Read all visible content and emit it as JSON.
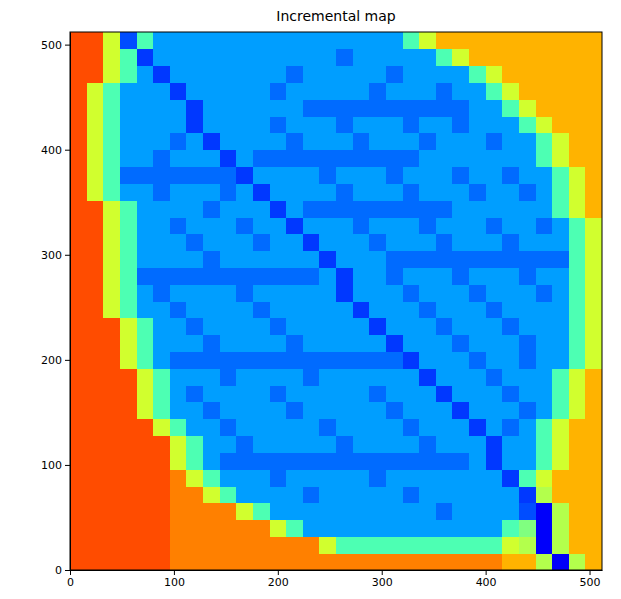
{
  "chart_data": {
    "type": "heatmap",
    "title": "Incremental map",
    "xlim": [
      0,
      512
    ],
    "ylim": [
      0,
      512
    ],
    "xticks": [
      0,
      100,
      200,
      300,
      400,
      500
    ],
    "yticks": [
      0,
      100,
      200,
      300,
      400,
      500
    ],
    "zlim": [
      0,
      1
    ],
    "x": [
      0,
      16,
      32,
      48,
      64,
      80,
      96,
      112,
      128,
      144,
      160,
      176,
      192,
      208,
      224,
      240,
      256,
      272,
      288,
      304,
      320,
      336,
      352,
      368,
      384,
      400,
      416,
      432,
      448,
      464,
      480,
      496,
      512
    ],
    "y": [
      0,
      16,
      32,
      48,
      64,
      80,
      96,
      112,
      128,
      144,
      160,
      176,
      192,
      208,
      224,
      240,
      256,
      272,
      288,
      304,
      320,
      336,
      352,
      368,
      384,
      400,
      416,
      432,
      448,
      464,
      480,
      496,
      512
    ],
    "z": [
      [
        0.8,
        0.8,
        0.8,
        0.8,
        0.8,
        0.8,
        0.75,
        0.75,
        0.75,
        0.75,
        0.75,
        0.75,
        0.75,
        0.75,
        0.75,
        0.75,
        0.75,
        0.75,
        0.75,
        0.75,
        0.75,
        0.75,
        0.75,
        0.75,
        0.75,
        0.75,
        0.7,
        0.7,
        0.55,
        0.12,
        0.55,
        0.7
      ],
      [
        0.8,
        0.8,
        0.8,
        0.8,
        0.8,
        0.8,
        0.75,
        0.75,
        0.75,
        0.75,
        0.75,
        0.75,
        0.75,
        0.75,
        0.75,
        0.58,
        0.45,
        0.45,
        0.45,
        0.45,
        0.45,
        0.45,
        0.45,
        0.45,
        0.45,
        0.45,
        0.58,
        0.55,
        0.12,
        0.55,
        0.7,
        0.7
      ],
      [
        0.8,
        0.8,
        0.8,
        0.8,
        0.8,
        0.8,
        0.75,
        0.75,
        0.75,
        0.75,
        0.75,
        0.75,
        0.58,
        0.45,
        0.28,
        0.28,
        0.28,
        0.28,
        0.28,
        0.28,
        0.28,
        0.28,
        0.28,
        0.28,
        0.28,
        0.28,
        0.45,
        0.5,
        0.12,
        0.55,
        0.7,
        0.7
      ],
      [
        0.8,
        0.8,
        0.8,
        0.8,
        0.8,
        0.8,
        0.75,
        0.75,
        0.75,
        0.75,
        0.58,
        0.45,
        0.28,
        0.28,
        0.28,
        0.28,
        0.28,
        0.28,
        0.28,
        0.28,
        0.28,
        0.28,
        0.23,
        0.28,
        0.28,
        0.28,
        0.28,
        0.2,
        0.12,
        0.55,
        0.7,
        0.7
      ],
      [
        0.8,
        0.8,
        0.8,
        0.8,
        0.8,
        0.8,
        0.75,
        0.75,
        0.58,
        0.45,
        0.28,
        0.28,
        0.28,
        0.28,
        0.23,
        0.28,
        0.28,
        0.28,
        0.28,
        0.28,
        0.23,
        0.28,
        0.28,
        0.28,
        0.28,
        0.28,
        0.28,
        0.18,
        0.55,
        0.7,
        0.7,
        0.7
      ],
      [
        0.8,
        0.8,
        0.8,
        0.8,
        0.8,
        0.8,
        0.75,
        0.58,
        0.45,
        0.28,
        0.28,
        0.28,
        0.23,
        0.28,
        0.28,
        0.28,
        0.28,
        0.28,
        0.23,
        0.28,
        0.28,
        0.28,
        0.28,
        0.28,
        0.28,
        0.28,
        0.18,
        0.45,
        0.58,
        0.7,
        0.7,
        0.7
      ],
      [
        0.8,
        0.8,
        0.8,
        0.8,
        0.8,
        0.8,
        0.58,
        0.45,
        0.28,
        0.23,
        0.23,
        0.23,
        0.23,
        0.23,
        0.23,
        0.23,
        0.23,
        0.23,
        0.23,
        0.23,
        0.23,
        0.23,
        0.23,
        0.23,
        0.28,
        0.18,
        0.28,
        0.28,
        0.45,
        0.58,
        0.7,
        0.7
      ],
      [
        0.8,
        0.8,
        0.8,
        0.8,
        0.8,
        0.8,
        0.58,
        0.45,
        0.28,
        0.28,
        0.23,
        0.28,
        0.28,
        0.28,
        0.28,
        0.28,
        0.23,
        0.28,
        0.28,
        0.28,
        0.28,
        0.23,
        0.28,
        0.28,
        0.28,
        0.18,
        0.28,
        0.28,
        0.45,
        0.58,
        0.7,
        0.7
      ],
      [
        0.8,
        0.8,
        0.8,
        0.8,
        0.8,
        0.58,
        0.45,
        0.28,
        0.28,
        0.23,
        0.28,
        0.28,
        0.28,
        0.28,
        0.28,
        0.23,
        0.28,
        0.28,
        0.28,
        0.28,
        0.23,
        0.28,
        0.28,
        0.28,
        0.18,
        0.28,
        0.23,
        0.28,
        0.45,
        0.58,
        0.7,
        0.7
      ],
      [
        0.8,
        0.8,
        0.8,
        0.8,
        0.58,
        0.45,
        0.28,
        0.28,
        0.23,
        0.28,
        0.28,
        0.28,
        0.28,
        0.23,
        0.28,
        0.28,
        0.28,
        0.28,
        0.28,
        0.23,
        0.28,
        0.28,
        0.28,
        0.18,
        0.28,
        0.28,
        0.28,
        0.23,
        0.28,
        0.45,
        0.58,
        0.7
      ],
      [
        0.8,
        0.8,
        0.8,
        0.8,
        0.58,
        0.45,
        0.28,
        0.23,
        0.28,
        0.28,
        0.28,
        0.28,
        0.23,
        0.28,
        0.28,
        0.28,
        0.28,
        0.28,
        0.23,
        0.28,
        0.28,
        0.28,
        0.18,
        0.28,
        0.28,
        0.28,
        0.23,
        0.28,
        0.28,
        0.45,
        0.58,
        0.7
      ],
      [
        0.8,
        0.8,
        0.8,
        0.8,
        0.58,
        0.45,
        0.28,
        0.28,
        0.28,
        0.23,
        0.28,
        0.28,
        0.28,
        0.28,
        0.23,
        0.28,
        0.28,
        0.28,
        0.28,
        0.28,
        0.28,
        0.18,
        0.28,
        0.28,
        0.28,
        0.23,
        0.28,
        0.28,
        0.28,
        0.45,
        0.58,
        0.7
      ],
      [
        0.8,
        0.8,
        0.8,
        0.58,
        0.45,
        0.28,
        0.23,
        0.23,
        0.23,
        0.23,
        0.23,
        0.23,
        0.23,
        0.23,
        0.23,
        0.23,
        0.23,
        0.23,
        0.23,
        0.23,
        0.18,
        0.28,
        0.28,
        0.28,
        0.23,
        0.28,
        0.28,
        0.23,
        0.28,
        0.28,
        0.45,
        0.58
      ],
      [
        0.8,
        0.8,
        0.8,
        0.58,
        0.45,
        0.28,
        0.28,
        0.28,
        0.23,
        0.28,
        0.28,
        0.28,
        0.28,
        0.23,
        0.28,
        0.28,
        0.28,
        0.28,
        0.28,
        0.18,
        0.28,
        0.28,
        0.28,
        0.23,
        0.28,
        0.28,
        0.28,
        0.23,
        0.28,
        0.28,
        0.45,
        0.58
      ],
      [
        0.8,
        0.8,
        0.8,
        0.58,
        0.45,
        0.28,
        0.28,
        0.23,
        0.28,
        0.28,
        0.28,
        0.28,
        0.23,
        0.28,
        0.28,
        0.28,
        0.28,
        0.28,
        0.18,
        0.28,
        0.28,
        0.28,
        0.23,
        0.28,
        0.28,
        0.28,
        0.23,
        0.28,
        0.28,
        0.28,
        0.45,
        0.58
      ],
      [
        0.8,
        0.8,
        0.58,
        0.45,
        0.28,
        0.28,
        0.23,
        0.28,
        0.28,
        0.28,
        0.28,
        0.23,
        0.28,
        0.28,
        0.28,
        0.28,
        0.28,
        0.18,
        0.28,
        0.28,
        0.28,
        0.23,
        0.28,
        0.28,
        0.28,
        0.23,
        0.28,
        0.28,
        0.28,
        0.28,
        0.45,
        0.58
      ],
      [
        0.8,
        0.8,
        0.58,
        0.45,
        0.28,
        0.23,
        0.28,
        0.28,
        0.28,
        0.28,
        0.23,
        0.28,
        0.28,
        0.28,
        0.28,
        0.28,
        0.18,
        0.28,
        0.28,
        0.28,
        0.23,
        0.28,
        0.28,
        0.28,
        0.23,
        0.28,
        0.28,
        0.28,
        0.23,
        0.28,
        0.45,
        0.58
      ],
      [
        0.8,
        0.8,
        0.58,
        0.45,
        0.23,
        0.23,
        0.23,
        0.23,
        0.23,
        0.23,
        0.23,
        0.23,
        0.23,
        0.23,
        0.23,
        0.28,
        0.18,
        0.28,
        0.28,
        0.23,
        0.28,
        0.28,
        0.28,
        0.23,
        0.28,
        0.28,
        0.28,
        0.23,
        0.28,
        0.28,
        0.45,
        0.58
      ],
      [
        0.8,
        0.8,
        0.58,
        0.45,
        0.28,
        0.28,
        0.28,
        0.28,
        0.23,
        0.28,
        0.28,
        0.28,
        0.28,
        0.28,
        0.28,
        0.18,
        0.28,
        0.28,
        0.28,
        0.23,
        0.23,
        0.23,
        0.23,
        0.23,
        0.23,
        0.23,
        0.23,
        0.23,
        0.23,
        0.23,
        0.45,
        0.58
      ],
      [
        0.8,
        0.8,
        0.58,
        0.45,
        0.28,
        0.28,
        0.28,
        0.23,
        0.28,
        0.28,
        0.28,
        0.23,
        0.28,
        0.28,
        0.18,
        0.28,
        0.28,
        0.28,
        0.23,
        0.28,
        0.28,
        0.28,
        0.23,
        0.28,
        0.28,
        0.28,
        0.23,
        0.28,
        0.28,
        0.28,
        0.45,
        0.58
      ],
      [
        0.8,
        0.8,
        0.58,
        0.45,
        0.28,
        0.28,
        0.23,
        0.28,
        0.28,
        0.28,
        0.23,
        0.28,
        0.28,
        0.18,
        0.28,
        0.28,
        0.28,
        0.23,
        0.28,
        0.28,
        0.28,
        0.23,
        0.28,
        0.28,
        0.28,
        0.23,
        0.28,
        0.28,
        0.23,
        0.28,
        0.45,
        0.58
      ],
      [
        0.8,
        0.8,
        0.58,
        0.45,
        0.28,
        0.28,
        0.28,
        0.28,
        0.23,
        0.28,
        0.28,
        0.28,
        0.18,
        0.28,
        0.23,
        0.23,
        0.23,
        0.23,
        0.23,
        0.23,
        0.23,
        0.23,
        0.23,
        0.28,
        0.28,
        0.28,
        0.28,
        0.28,
        0.28,
        0.45,
        0.58,
        0.7
      ],
      [
        0.8,
        0.58,
        0.45,
        0.28,
        0.28,
        0.23,
        0.28,
        0.28,
        0.28,
        0.23,
        0.28,
        0.18,
        0.28,
        0.28,
        0.28,
        0.28,
        0.23,
        0.28,
        0.28,
        0.28,
        0.23,
        0.28,
        0.28,
        0.28,
        0.23,
        0.28,
        0.28,
        0.23,
        0.28,
        0.45,
        0.58,
        0.7
      ],
      [
        0.8,
        0.58,
        0.45,
        0.23,
        0.23,
        0.23,
        0.23,
        0.23,
        0.23,
        0.23,
        0.18,
        0.28,
        0.28,
        0.28,
        0.28,
        0.23,
        0.28,
        0.28,
        0.28,
        0.23,
        0.28,
        0.28,
        0.28,
        0.23,
        0.28,
        0.28,
        0.23,
        0.28,
        0.28,
        0.45,
        0.58,
        0.7
      ],
      [
        0.8,
        0.58,
        0.45,
        0.28,
        0.28,
        0.23,
        0.28,
        0.28,
        0.28,
        0.18,
        0.28,
        0.23,
        0.23,
        0.23,
        0.23,
        0.23,
        0.23,
        0.23,
        0.23,
        0.23,
        0.23,
        0.28,
        0.28,
        0.28,
        0.28,
        0.28,
        0.28,
        0.28,
        0.45,
        0.58,
        0.7,
        0.7
      ],
      [
        0.8,
        0.58,
        0.45,
        0.28,
        0.28,
        0.28,
        0.23,
        0.28,
        0.18,
        0.28,
        0.28,
        0.28,
        0.28,
        0.23,
        0.28,
        0.28,
        0.28,
        0.23,
        0.28,
        0.28,
        0.28,
        0.23,
        0.28,
        0.28,
        0.28,
        0.23,
        0.28,
        0.28,
        0.45,
        0.58,
        0.7,
        0.7
      ],
      [
        0.8,
        0.58,
        0.45,
        0.28,
        0.28,
        0.28,
        0.28,
        0.18,
        0.28,
        0.28,
        0.28,
        0.28,
        0.23,
        0.28,
        0.28,
        0.28,
        0.23,
        0.28,
        0.28,
        0.28,
        0.23,
        0.28,
        0.28,
        0.23,
        0.28,
        0.28,
        0.28,
        0.45,
        0.58,
        0.7,
        0.7,
        0.7
      ],
      [
        0.8,
        0.58,
        0.45,
        0.28,
        0.28,
        0.28,
        0.28,
        0.18,
        0.28,
        0.28,
        0.28,
        0.28,
        0.28,
        0.28,
        0.23,
        0.23,
        0.23,
        0.23,
        0.23,
        0.23,
        0.23,
        0.23,
        0.23,
        0.23,
        0.28,
        0.28,
        0.45,
        0.58,
        0.7,
        0.7,
        0.7,
        0.7
      ],
      [
        0.8,
        0.58,
        0.45,
        0.28,
        0.28,
        0.28,
        0.18,
        0.28,
        0.28,
        0.28,
        0.28,
        0.28,
        0.23,
        0.28,
        0.28,
        0.28,
        0.28,
        0.28,
        0.23,
        0.28,
        0.28,
        0.28,
        0.23,
        0.28,
        0.28,
        0.45,
        0.58,
        0.7,
        0.7,
        0.7,
        0.7,
        0.7
      ],
      [
        0.8,
        0.8,
        0.58,
        0.45,
        0.28,
        0.18,
        0.28,
        0.28,
        0.28,
        0.28,
        0.28,
        0.28,
        0.28,
        0.23,
        0.28,
        0.28,
        0.28,
        0.28,
        0.28,
        0.23,
        0.28,
        0.28,
        0.28,
        0.28,
        0.45,
        0.58,
        0.7,
        0.7,
        0.7,
        0.7,
        0.7,
        0.7
      ],
      [
        0.8,
        0.8,
        0.58,
        0.45,
        0.18,
        0.28,
        0.28,
        0.28,
        0.28,
        0.28,
        0.28,
        0.28,
        0.28,
        0.28,
        0.28,
        0.28,
        0.23,
        0.28,
        0.28,
        0.28,
        0.28,
        0.28,
        0.45,
        0.58,
        0.7,
        0.7,
        0.7,
        0.7,
        0.7,
        0.7,
        0.7,
        0.7
      ],
      [
        0.8,
        0.8,
        0.58,
        0.2,
        0.45,
        0.28,
        0.28,
        0.28,
        0.28,
        0.28,
        0.28,
        0.28,
        0.28,
        0.28,
        0.28,
        0.28,
        0.28,
        0.28,
        0.28,
        0.28,
        0.45,
        0.58,
        0.7,
        0.7,
        0.7,
        0.7,
        0.7,
        0.7,
        0.7,
        0.7,
        0.7,
        0.7
      ]
    ]
  }
}
